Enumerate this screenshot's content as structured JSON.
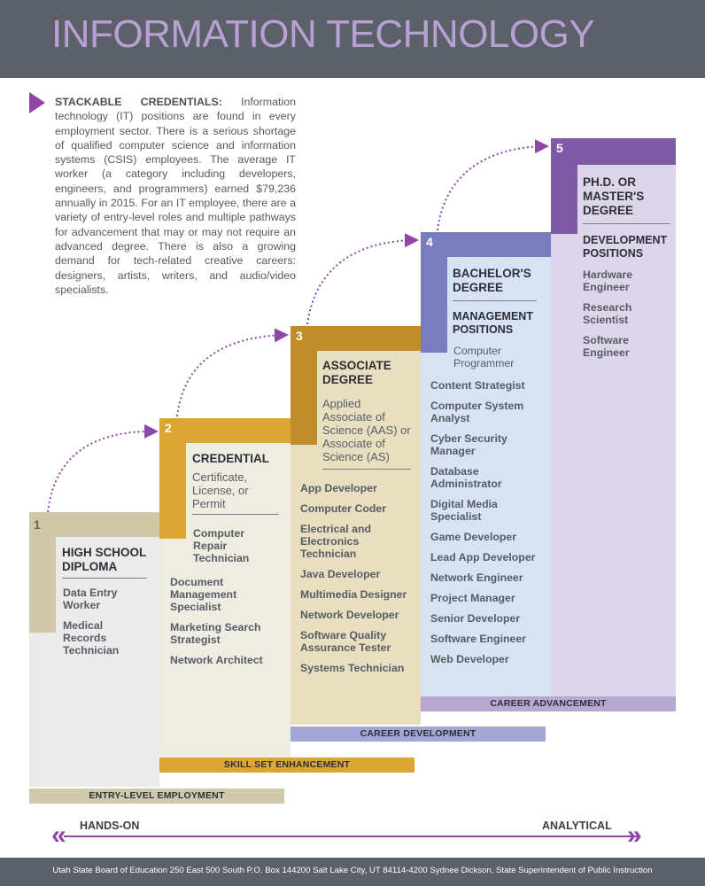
{
  "header": {
    "title": "INFORMATION TECHNOLOGY"
  },
  "intro": {
    "lead": "STACKABLE CREDENTIALS:",
    "text": "Information technology (IT) positions are found in every employment sector. There is a serious shortage of qualified computer science and information systems (CSIS) employees. The average IT worker (a category including developers, engineers, and programmers) earned $79,236 annually in 2015. For an IT employee, there are a variety of entry-level roles and multiple pathways for advancement that may or may not require an advanced degree. There is also a growing demand for tech-related creative careers: designers, artists, writers, and audio/video specialists."
  },
  "levels": [
    {
      "number": "1",
      "title": "HIGH SCHOOL DIPLOMA",
      "jobs": [
        "Data Entry Worker",
        "Medical Records Technician"
      ],
      "bar_label": "ENTRY-LEVEL EMPLOYMENT"
    },
    {
      "number": "2",
      "title": "CREDENTIAL",
      "subtitle": "Certificate, License, or Permit",
      "jobs": [
        "Computer Repair Technician",
        "Document Management Specialist",
        "Marketing Search Strategist",
        "Network Architect"
      ],
      "bar_label": "SKILL SET ENHANCEMENT"
    },
    {
      "number": "3",
      "title": "ASSOCIATE DEGREE",
      "subtitle": "Applied Associate of Science (AAS) or Associate of Science (AS)",
      "jobs": [
        "App Developer",
        "Computer Coder",
        "Electrical and Electronics Technician",
        "Java Developer",
        "Multimedia Designer",
        "Network Developer",
        "Software Quality Assurance Tester",
        "Systems Technician"
      ],
      "bar_label": "CAREER DEVELOPMENT"
    },
    {
      "number": "4",
      "title": "BACHELOR'S DEGREE",
      "section_head": "MANAGEMENT POSITIONS",
      "jobs": [
        "Computer Programmer",
        "Content Strategist",
        "Computer System Analyst",
        "Cyber Security Manager",
        "Database Administrator",
        "Digital Media Specialist",
        "Game Developer",
        "Lead App Developer",
        "Network Engineer",
        "Project Manager",
        "Senior Developer",
        "Software Engineer",
        "Web Developer"
      ],
      "bar_label": "CAREER ADVANCEMENT"
    },
    {
      "number": "5",
      "title": "PH.D. OR MASTER'S DEGREE",
      "section_head": "DEVELOPMENT POSITIONS",
      "jobs": [
        "Hardware Engineer",
        "Research Scientist",
        "Software Engineer"
      ]
    }
  ],
  "axis": {
    "left_label": "HANDS-ON",
    "right_label": "ANALYTICAL"
  },
  "footer": {
    "text": "Utah State Board of Education   250 East 500 South   P.O. Box 144200   Salt Lake City, UT 84114-4200     Sydnee Dickson, State Superintendent of Public Instruction"
  },
  "colors": {
    "header_bg": "#5c6068",
    "title": "#b7a0d4",
    "accent_purple": "#8e46a8",
    "level1": "#cfc7a8",
    "level2": "#dba634",
    "level3": "#bf8d2c",
    "level4": "#7a7cc0",
    "level5": "#7e5aa6"
  }
}
